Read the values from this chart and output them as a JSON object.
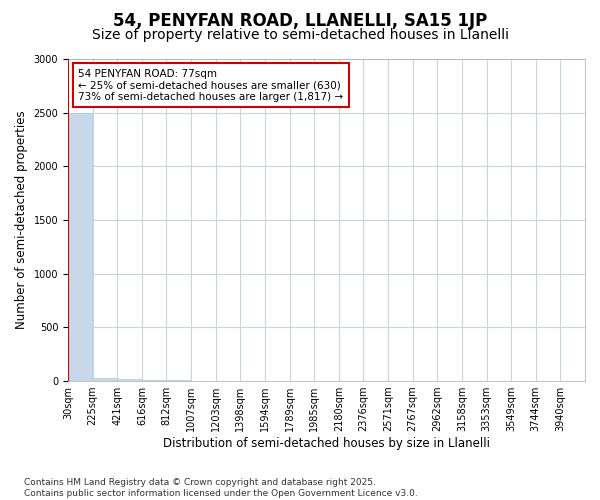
{
  "title": "54, PENYFAN ROAD, LLANELLI, SA15 1JP",
  "subtitle": "Size of property relative to semi-detached houses in Llanelli",
  "xlabel": "Distribution of semi-detached houses by size in Llanelli",
  "ylabel": "Number of semi-detached properties",
  "footnote": "Contains HM Land Registry data © Crown copyright and database right 2025.\nContains public sector information licensed under the Open Government Licence v3.0.",
  "annotation_title": "54 PENYFAN ROAD: 77sqm",
  "annotation_line1": "← 25% of semi-detached houses are smaller (630)",
  "annotation_line2": "73% of semi-detached houses are larger (1,817) →",
  "property_bin_index": 0,
  "bin_labels": [
    "30sqm",
    "225sqm",
    "421sqm",
    "616sqm",
    "812sqm",
    "1007sqm",
    "1203sqm",
    "1398sqm",
    "1594sqm",
    "1789sqm",
    "1985sqm",
    "2180sqm",
    "2376sqm",
    "2571sqm",
    "2767sqm",
    "2962sqm",
    "3158sqm",
    "3353sqm",
    "3549sqm",
    "3744sqm",
    "3940sqm"
  ],
  "counts": [
    2500,
    30,
    15,
    8,
    5,
    4,
    3,
    3,
    2,
    2,
    2,
    2,
    2,
    1,
    1,
    1,
    1,
    1,
    1,
    1
  ],
  "bar_color": "#c8d8ea",
  "bar_edge_color": "#b0c8e0",
  "vline_color": "#cc0000",
  "annotation_box_facecolor": "#ffffff",
  "annotation_box_edgecolor": "#cc0000",
  "ylim": [
    0,
    3000
  ],
  "grid_color": "#c8d4e0",
  "background_color": "#ffffff",
  "title_fontsize": 12,
  "subtitle_fontsize": 10,
  "axis_label_fontsize": 8.5,
  "tick_fontsize": 7,
  "footnote_fontsize": 6.5
}
